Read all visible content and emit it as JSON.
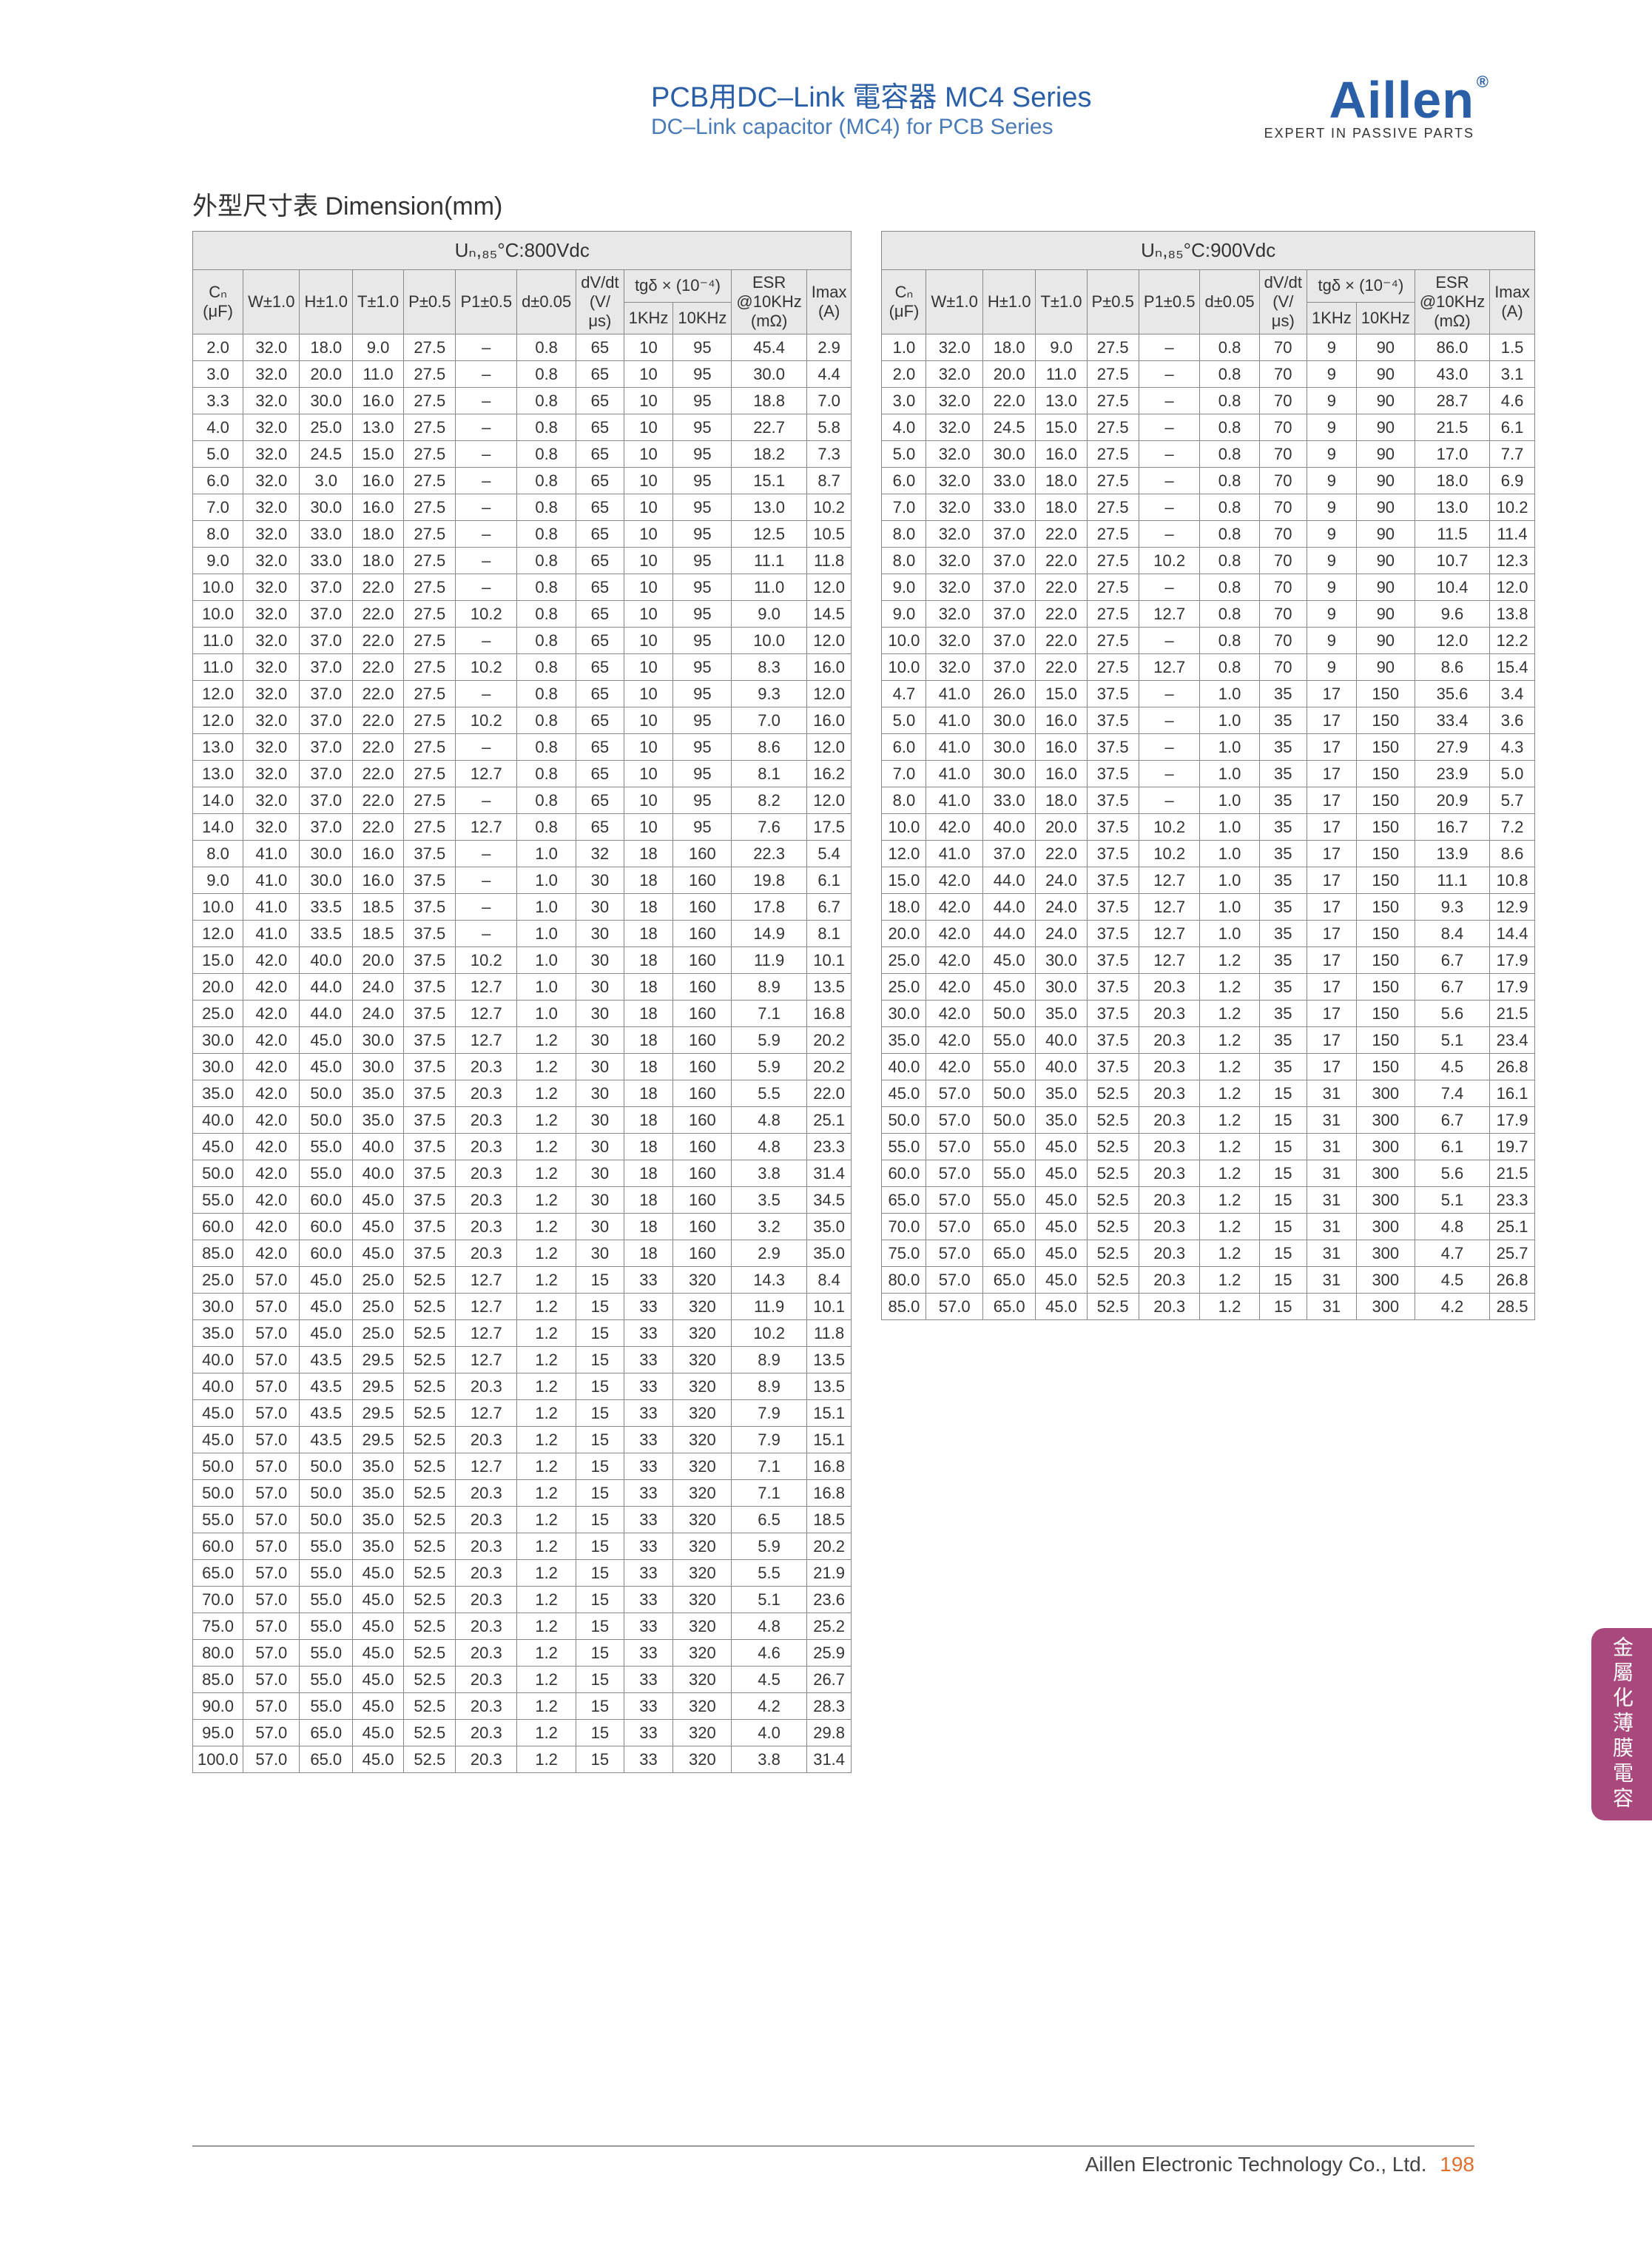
{
  "header": {
    "title_cn": "PCB用DC–Link 電容器 MC4 Series",
    "title_en": "DC–Link capacitor (MC4) for PCB Series",
    "logo": "Aillen",
    "logo_sub": "EXPERT IN PASSIVE PARTS"
  },
  "section_title": "外型尺寸表 Dimension(mm)",
  "header_labels": {
    "cn_uf": "Cₙ (μF)",
    "w": "W±1.0",
    "h": "H±1.0",
    "t": "T±1.0",
    "p": "P±0.5",
    "p1": "P1±0.5",
    "d": "d±0.05",
    "dvdt": "dV/dt (V/μs)",
    "tgd": "tgδ × (10⁻⁴)",
    "tgd_1k": "1KHz",
    "tgd_10k": "10KHz",
    "esr": "ESR @10KHz (mΩ)",
    "imax": "Imax (A)"
  },
  "table1": {
    "main_header": "Uₙ,₈₅°C:800Vdc",
    "rows": [
      [
        "2.0",
        "32.0",
        "18.0",
        "9.0",
        "27.5",
        "–",
        "0.8",
        "65",
        "10",
        "95",
        "45.4",
        "2.9"
      ],
      [
        "3.0",
        "32.0",
        "20.0",
        "11.0",
        "27.5",
        "–",
        "0.8",
        "65",
        "10",
        "95",
        "30.0",
        "4.4"
      ],
      [
        "3.3",
        "32.0",
        "30.0",
        "16.0",
        "27.5",
        "–",
        "0.8",
        "65",
        "10",
        "95",
        "18.8",
        "7.0"
      ],
      [
        "4.0",
        "32.0",
        "25.0",
        "13.0",
        "27.5",
        "–",
        "0.8",
        "65",
        "10",
        "95",
        "22.7",
        "5.8"
      ],
      [
        "5.0",
        "32.0",
        "24.5",
        "15.0",
        "27.5",
        "–",
        "0.8",
        "65",
        "10",
        "95",
        "18.2",
        "7.3"
      ],
      [
        "6.0",
        "32.0",
        "3.0",
        "16.0",
        "27.5",
        "–",
        "0.8",
        "65",
        "10",
        "95",
        "15.1",
        "8.7"
      ],
      [
        "7.0",
        "32.0",
        "30.0",
        "16.0",
        "27.5",
        "–",
        "0.8",
        "65",
        "10",
        "95",
        "13.0",
        "10.2"
      ],
      [
        "8.0",
        "32.0",
        "33.0",
        "18.0",
        "27.5",
        "–",
        "0.8",
        "65",
        "10",
        "95",
        "12.5",
        "10.5"
      ],
      [
        "9.0",
        "32.0",
        "33.0",
        "18.0",
        "27.5",
        "–",
        "0.8",
        "65",
        "10",
        "95",
        "11.1",
        "11.8"
      ],
      [
        "10.0",
        "32.0",
        "37.0",
        "22.0",
        "27.5",
        "–",
        "0.8",
        "65",
        "10",
        "95",
        "11.0",
        "12.0"
      ],
      [
        "10.0",
        "32.0",
        "37.0",
        "22.0",
        "27.5",
        "10.2",
        "0.8",
        "65",
        "10",
        "95",
        "9.0",
        "14.5"
      ],
      [
        "11.0",
        "32.0",
        "37.0",
        "22.0",
        "27.5",
        "–",
        "0.8",
        "65",
        "10",
        "95",
        "10.0",
        "12.0"
      ],
      [
        "11.0",
        "32.0",
        "37.0",
        "22.0",
        "27.5",
        "10.2",
        "0.8",
        "65",
        "10",
        "95",
        "8.3",
        "16.0"
      ],
      [
        "12.0",
        "32.0",
        "37.0",
        "22.0",
        "27.5",
        "–",
        "0.8",
        "65",
        "10",
        "95",
        "9.3",
        "12.0"
      ],
      [
        "12.0",
        "32.0",
        "37.0",
        "22.0",
        "27.5",
        "10.2",
        "0.8",
        "65",
        "10",
        "95",
        "7.0",
        "16.0"
      ],
      [
        "13.0",
        "32.0",
        "37.0",
        "22.0",
        "27.5",
        "–",
        "0.8",
        "65",
        "10",
        "95",
        "8.6",
        "12.0"
      ],
      [
        "13.0",
        "32.0",
        "37.0",
        "22.0",
        "27.5",
        "12.7",
        "0.8",
        "65",
        "10",
        "95",
        "8.1",
        "16.2"
      ],
      [
        "14.0",
        "32.0",
        "37.0",
        "22.0",
        "27.5",
        "–",
        "0.8",
        "65",
        "10",
        "95",
        "8.2",
        "12.0"
      ],
      [
        "14.0",
        "32.0",
        "37.0",
        "22.0",
        "27.5",
        "12.7",
        "0.8",
        "65",
        "10",
        "95",
        "7.6",
        "17.5"
      ],
      [
        "8.0",
        "41.0",
        "30.0",
        "16.0",
        "37.5",
        "–",
        "1.0",
        "32",
        "18",
        "160",
        "22.3",
        "5.4"
      ],
      [
        "9.0",
        "41.0",
        "30.0",
        "16.0",
        "37.5",
        "–",
        "1.0",
        "30",
        "18",
        "160",
        "19.8",
        "6.1"
      ],
      [
        "10.0",
        "41.0",
        "33.5",
        "18.5",
        "37.5",
        "–",
        "1.0",
        "30",
        "18",
        "160",
        "17.8",
        "6.7"
      ],
      [
        "12.0",
        "41.0",
        "33.5",
        "18.5",
        "37.5",
        "–",
        "1.0",
        "30",
        "18",
        "160",
        "14.9",
        "8.1"
      ],
      [
        "15.0",
        "42.0",
        "40.0",
        "20.0",
        "37.5",
        "10.2",
        "1.0",
        "30",
        "18",
        "160",
        "11.9",
        "10.1"
      ],
      [
        "20.0",
        "42.0",
        "44.0",
        "24.0",
        "37.5",
        "12.7",
        "1.0",
        "30",
        "18",
        "160",
        "8.9",
        "13.5"
      ],
      [
        "25.0",
        "42.0",
        "44.0",
        "24.0",
        "37.5",
        "12.7",
        "1.0",
        "30",
        "18",
        "160",
        "7.1",
        "16.8"
      ],
      [
        "30.0",
        "42.0",
        "45.0",
        "30.0",
        "37.5",
        "12.7",
        "1.2",
        "30",
        "18",
        "160",
        "5.9",
        "20.2"
      ],
      [
        "30.0",
        "42.0",
        "45.0",
        "30.0",
        "37.5",
        "20.3",
        "1.2",
        "30",
        "18",
        "160",
        "5.9",
        "20.2"
      ],
      [
        "35.0",
        "42.0",
        "50.0",
        "35.0",
        "37.5",
        "20.3",
        "1.2",
        "30",
        "18",
        "160",
        "5.5",
        "22.0"
      ],
      [
        "40.0",
        "42.0",
        "50.0",
        "35.0",
        "37.5",
        "20.3",
        "1.2",
        "30",
        "18",
        "160",
        "4.8",
        "25.1"
      ],
      [
        "45.0",
        "42.0",
        "55.0",
        "40.0",
        "37.5",
        "20.3",
        "1.2",
        "30",
        "18",
        "160",
        "4.8",
        "23.3"
      ],
      [
        "50.0",
        "42.0",
        "55.0",
        "40.0",
        "37.5",
        "20.3",
        "1.2",
        "30",
        "18",
        "160",
        "3.8",
        "31.4"
      ],
      [
        "55.0",
        "42.0",
        "60.0",
        "45.0",
        "37.5",
        "20.3",
        "1.2",
        "30",
        "18",
        "160",
        "3.5",
        "34.5"
      ],
      [
        "60.0",
        "42.0",
        "60.0",
        "45.0",
        "37.5",
        "20.3",
        "1.2",
        "30",
        "18",
        "160",
        "3.2",
        "35.0"
      ],
      [
        "85.0",
        "42.0",
        "60.0",
        "45.0",
        "37.5",
        "20.3",
        "1.2",
        "30",
        "18",
        "160",
        "2.9",
        "35.0"
      ],
      [
        "25.0",
        "57.0",
        "45.0",
        "25.0",
        "52.5",
        "12.7",
        "1.2",
        "15",
        "33",
        "320",
        "14.3",
        "8.4"
      ],
      [
        "30.0",
        "57.0",
        "45.0",
        "25.0",
        "52.5",
        "12.7",
        "1.2",
        "15",
        "33",
        "320",
        "11.9",
        "10.1"
      ],
      [
        "35.0",
        "57.0",
        "45.0",
        "25.0",
        "52.5",
        "12.7",
        "1.2",
        "15",
        "33",
        "320",
        "10.2",
        "11.8"
      ],
      [
        "40.0",
        "57.0",
        "43.5",
        "29.5",
        "52.5",
        "12.7",
        "1.2",
        "15",
        "33",
        "320",
        "8.9",
        "13.5"
      ],
      [
        "40.0",
        "57.0",
        "43.5",
        "29.5",
        "52.5",
        "20.3",
        "1.2",
        "15",
        "33",
        "320",
        "8.9",
        "13.5"
      ],
      [
        "45.0",
        "57.0",
        "43.5",
        "29.5",
        "52.5",
        "12.7",
        "1.2",
        "15",
        "33",
        "320",
        "7.9",
        "15.1"
      ],
      [
        "45.0",
        "57.0",
        "43.5",
        "29.5",
        "52.5",
        "20.3",
        "1.2",
        "15",
        "33",
        "320",
        "7.9",
        "15.1"
      ],
      [
        "50.0",
        "57.0",
        "50.0",
        "35.0",
        "52.5",
        "12.7",
        "1.2",
        "15",
        "33",
        "320",
        "7.1",
        "16.8"
      ],
      [
        "50.0",
        "57.0",
        "50.0",
        "35.0",
        "52.5",
        "20.3",
        "1.2",
        "15",
        "33",
        "320",
        "7.1",
        "16.8"
      ],
      [
        "55.0",
        "57.0",
        "50.0",
        "35.0",
        "52.5",
        "20.3",
        "1.2",
        "15",
        "33",
        "320",
        "6.5",
        "18.5"
      ],
      [
        "60.0",
        "57.0",
        "55.0",
        "35.0",
        "52.5",
        "20.3",
        "1.2",
        "15",
        "33",
        "320",
        "5.9",
        "20.2"
      ],
      [
        "65.0",
        "57.0",
        "55.0",
        "45.0",
        "52.5",
        "20.3",
        "1.2",
        "15",
        "33",
        "320",
        "5.5",
        "21.9"
      ],
      [
        "70.0",
        "57.0",
        "55.0",
        "45.0",
        "52.5",
        "20.3",
        "1.2",
        "15",
        "33",
        "320",
        "5.1",
        "23.6"
      ],
      [
        "75.0",
        "57.0",
        "55.0",
        "45.0",
        "52.5",
        "20.3",
        "1.2",
        "15",
        "33",
        "320",
        "4.8",
        "25.2"
      ],
      [
        "80.0",
        "57.0",
        "55.0",
        "45.0",
        "52.5",
        "20.3",
        "1.2",
        "15",
        "33",
        "320",
        "4.6",
        "25.9"
      ],
      [
        "85.0",
        "57.0",
        "55.0",
        "45.0",
        "52.5",
        "20.3",
        "1.2",
        "15",
        "33",
        "320",
        "4.5",
        "26.7"
      ],
      [
        "90.0",
        "57.0",
        "55.0",
        "45.0",
        "52.5",
        "20.3",
        "1.2",
        "15",
        "33",
        "320",
        "4.2",
        "28.3"
      ],
      [
        "95.0",
        "57.0",
        "65.0",
        "45.0",
        "52.5",
        "20.3",
        "1.2",
        "15",
        "33",
        "320",
        "4.0",
        "29.8"
      ],
      [
        "100.0",
        "57.0",
        "65.0",
        "45.0",
        "52.5",
        "20.3",
        "1.2",
        "15",
        "33",
        "320",
        "3.8",
        "31.4"
      ]
    ]
  },
  "table2": {
    "main_header": "Uₙ,₈₅°C:900Vdc",
    "rows": [
      [
        "1.0",
        "32.0",
        "18.0",
        "9.0",
        "27.5",
        "–",
        "0.8",
        "70",
        "9",
        "90",
        "86.0",
        "1.5"
      ],
      [
        "2.0",
        "32.0",
        "20.0",
        "11.0",
        "27.5",
        "–",
        "0.8",
        "70",
        "9",
        "90",
        "43.0",
        "3.1"
      ],
      [
        "3.0",
        "32.0",
        "22.0",
        "13.0",
        "27.5",
        "–",
        "0.8",
        "70",
        "9",
        "90",
        "28.7",
        "4.6"
      ],
      [
        "4.0",
        "32.0",
        "24.5",
        "15.0",
        "27.5",
        "–",
        "0.8",
        "70",
        "9",
        "90",
        "21.5",
        "6.1"
      ],
      [
        "5.0",
        "32.0",
        "30.0",
        "16.0",
        "27.5",
        "–",
        "0.8",
        "70",
        "9",
        "90",
        "17.0",
        "7.7"
      ],
      [
        "6.0",
        "32.0",
        "33.0",
        "18.0",
        "27.5",
        "–",
        "0.8",
        "70",
        "9",
        "90",
        "18.0",
        "6.9"
      ],
      [
        "7.0",
        "32.0",
        "33.0",
        "18.0",
        "27.5",
        "–",
        "0.8",
        "70",
        "9",
        "90",
        "13.0",
        "10.2"
      ],
      [
        "8.0",
        "32.0",
        "37.0",
        "22.0",
        "27.5",
        "–",
        "0.8",
        "70",
        "9",
        "90",
        "11.5",
        "11.4"
      ],
      [
        "8.0",
        "32.0",
        "37.0",
        "22.0",
        "27.5",
        "10.2",
        "0.8",
        "70",
        "9",
        "90",
        "10.7",
        "12.3"
      ],
      [
        "9.0",
        "32.0",
        "37.0",
        "22.0",
        "27.5",
        "–",
        "0.8",
        "70",
        "9",
        "90",
        "10.4",
        "12.0"
      ],
      [
        "9.0",
        "32.0",
        "37.0",
        "22.0",
        "27.5",
        "12.7",
        "0.8",
        "70",
        "9",
        "90",
        "9.6",
        "13.8"
      ],
      [
        "10.0",
        "32.0",
        "37.0",
        "22.0",
        "27.5",
        "–",
        "0.8",
        "70",
        "9",
        "90",
        "12.0",
        "12.2"
      ],
      [
        "10.0",
        "32.0",
        "37.0",
        "22.0",
        "27.5",
        "12.7",
        "0.8",
        "70",
        "9",
        "90",
        "8.6",
        "15.4"
      ],
      [
        "4.7",
        "41.0",
        "26.0",
        "15.0",
        "37.5",
        "–",
        "1.0",
        "35",
        "17",
        "150",
        "35.6",
        "3.4"
      ],
      [
        "5.0",
        "41.0",
        "30.0",
        "16.0",
        "37.5",
        "–",
        "1.0",
        "35",
        "17",
        "150",
        "33.4",
        "3.6"
      ],
      [
        "6.0",
        "41.0",
        "30.0",
        "16.0",
        "37.5",
        "–",
        "1.0",
        "35",
        "17",
        "150",
        "27.9",
        "4.3"
      ],
      [
        "7.0",
        "41.0",
        "30.0",
        "16.0",
        "37.5",
        "–",
        "1.0",
        "35",
        "17",
        "150",
        "23.9",
        "5.0"
      ],
      [
        "8.0",
        "41.0",
        "33.0",
        "18.0",
        "37.5",
        "–",
        "1.0",
        "35",
        "17",
        "150",
        "20.9",
        "5.7"
      ],
      [
        "10.0",
        "42.0",
        "40.0",
        "20.0",
        "37.5",
        "10.2",
        "1.0",
        "35",
        "17",
        "150",
        "16.7",
        "7.2"
      ],
      [
        "12.0",
        "41.0",
        "37.0",
        "22.0",
        "37.5",
        "10.2",
        "1.0",
        "35",
        "17",
        "150",
        "13.9",
        "8.6"
      ],
      [
        "15.0",
        "42.0",
        "44.0",
        "24.0",
        "37.5",
        "12.7",
        "1.0",
        "35",
        "17",
        "150",
        "11.1",
        "10.8"
      ],
      [
        "18.0",
        "42.0",
        "44.0",
        "24.0",
        "37.5",
        "12.7",
        "1.0",
        "35",
        "17",
        "150",
        "9.3",
        "12.9"
      ],
      [
        "20.0",
        "42.0",
        "44.0",
        "24.0",
        "37.5",
        "12.7",
        "1.0",
        "35",
        "17",
        "150",
        "8.4",
        "14.4"
      ],
      [
        "25.0",
        "42.0",
        "45.0",
        "30.0",
        "37.5",
        "12.7",
        "1.2",
        "35",
        "17",
        "150",
        "6.7",
        "17.9"
      ],
      [
        "25.0",
        "42.0",
        "45.0",
        "30.0",
        "37.5",
        "20.3",
        "1.2",
        "35",
        "17",
        "150",
        "6.7",
        "17.9"
      ],
      [
        "30.0",
        "42.0",
        "50.0",
        "35.0",
        "37.5",
        "20.3",
        "1.2",
        "35",
        "17",
        "150",
        "5.6",
        "21.5"
      ],
      [
        "35.0",
        "42.0",
        "55.0",
        "40.0",
        "37.5",
        "20.3",
        "1.2",
        "35",
        "17",
        "150",
        "5.1",
        "23.4"
      ],
      [
        "40.0",
        "42.0",
        "55.0",
        "40.0",
        "37.5",
        "20.3",
        "1.2",
        "35",
        "17",
        "150",
        "4.5",
        "26.8"
      ],
      [
        "45.0",
        "57.0",
        "50.0",
        "35.0",
        "52.5",
        "20.3",
        "1.2",
        "15",
        "31",
        "300",
        "7.4",
        "16.1"
      ],
      [
        "50.0",
        "57.0",
        "50.0",
        "35.0",
        "52.5",
        "20.3",
        "1.2",
        "15",
        "31",
        "300",
        "6.7",
        "17.9"
      ],
      [
        "55.0",
        "57.0",
        "55.0",
        "45.0",
        "52.5",
        "20.3",
        "1.2",
        "15",
        "31",
        "300",
        "6.1",
        "19.7"
      ],
      [
        "60.0",
        "57.0",
        "55.0",
        "45.0",
        "52.5",
        "20.3",
        "1.2",
        "15",
        "31",
        "300",
        "5.6",
        "21.5"
      ],
      [
        "65.0",
        "57.0",
        "55.0",
        "45.0",
        "52.5",
        "20.3",
        "1.2",
        "15",
        "31",
        "300",
        "5.1",
        "23.3"
      ],
      [
        "70.0",
        "57.0",
        "65.0",
        "45.0",
        "52.5",
        "20.3",
        "1.2",
        "15",
        "31",
        "300",
        "4.8",
        "25.1"
      ],
      [
        "75.0",
        "57.0",
        "65.0",
        "45.0",
        "52.5",
        "20.3",
        "1.2",
        "15",
        "31",
        "300",
        "4.7",
        "25.7"
      ],
      [
        "80.0",
        "57.0",
        "65.0",
        "45.0",
        "52.5",
        "20.3",
        "1.2",
        "15",
        "31",
        "300",
        "4.5",
        "26.8"
      ],
      [
        "85.0",
        "57.0",
        "65.0",
        "45.0",
        "52.5",
        "20.3",
        "1.2",
        "15",
        "31",
        "300",
        "4.2",
        "28.5"
      ]
    ]
  },
  "side_tab": "金屬化薄膜電容",
  "footer_text": "Aillen Electronic Technology Co., Ltd.",
  "footer_page": "198"
}
